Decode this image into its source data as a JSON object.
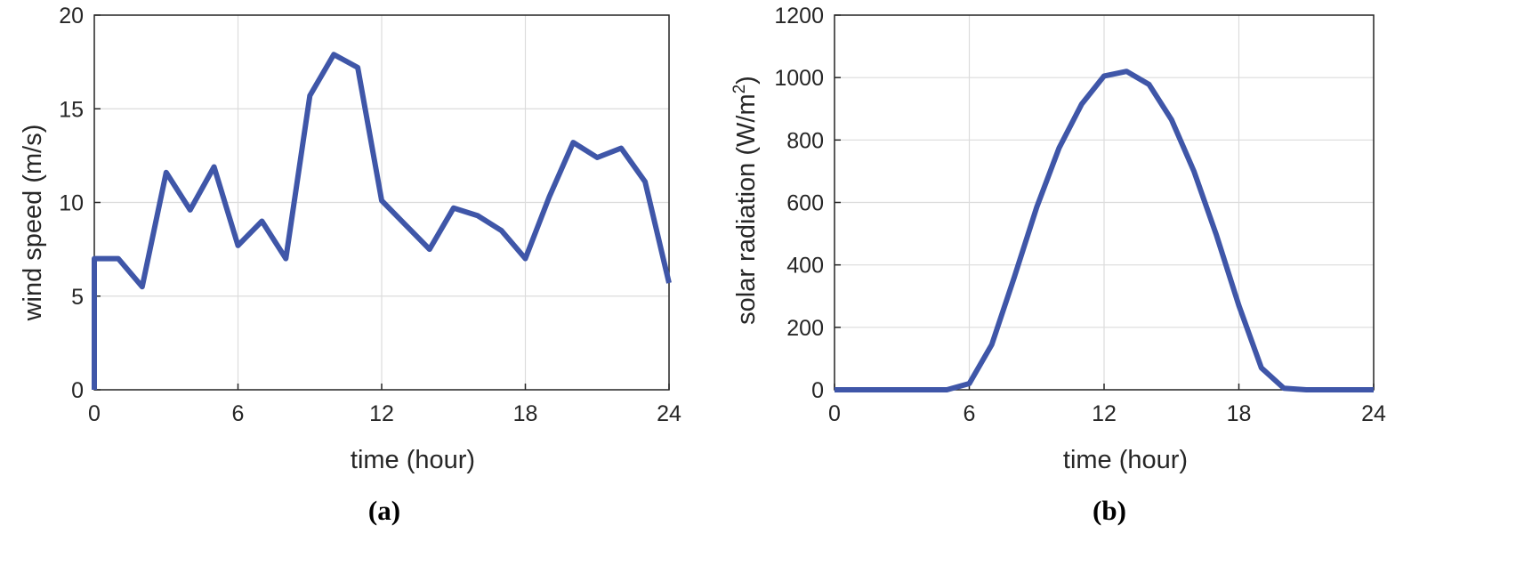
{
  "chart_data": [
    {
      "type": "line",
      "panel_label": "(a)",
      "xlabel": "time (hour)",
      "ylabel": "wind speed (m/s)",
      "xlim": [
        0,
        24
      ],
      "ylim": [
        0,
        20
      ],
      "xticks": [
        0,
        6,
        12,
        18,
        24
      ],
      "yticks": [
        0,
        5,
        10,
        15,
        20
      ],
      "grid": true,
      "color": "#3f56a8",
      "series": [
        {
          "x": [
            0,
            0,
            1,
            2,
            3,
            4,
            5,
            6,
            7,
            8,
            9,
            10,
            11,
            12,
            13,
            14,
            15,
            16,
            17,
            18,
            19,
            20,
            21,
            22,
            23,
            24
          ],
          "values": [
            0,
            7,
            7,
            5.5,
            11.6,
            9.6,
            11.9,
            7.7,
            9.0,
            7.0,
            15.7,
            17.9,
            17.2,
            10.1,
            8.8,
            7.5,
            9.7,
            9.3,
            8.5,
            7.0,
            10.3,
            13.2,
            12.4,
            12.9,
            11.1,
            5.7
          ]
        }
      ]
    },
    {
      "type": "line",
      "panel_label": "(b)",
      "xlabel": "time (hour)",
      "ylabel_main": "solar radiation (W/m",
      "ylabel_sup": "2",
      "ylabel_end": ")",
      "xlim": [
        0,
        24
      ],
      "ylim": [
        0,
        1200
      ],
      "xticks": [
        0,
        6,
        12,
        18,
        24
      ],
      "yticks": [
        0,
        200,
        400,
        600,
        800,
        1000,
        1200
      ],
      "grid": true,
      "color": "#3f56a8",
      "series": [
        {
          "x": [
            0,
            1,
            2,
            3,
            4,
            5,
            6,
            7,
            8,
            9,
            10,
            11,
            12,
            13,
            14,
            15,
            16,
            17,
            18,
            19,
            20,
            21,
            22,
            23,
            24
          ],
          "values": [
            0,
            0,
            0,
            0,
            0,
            0,
            20,
            145,
            360,
            585,
            775,
            915,
            1005,
            1020,
            978,
            865,
            700,
            495,
            270,
            70,
            5,
            0,
            0,
            0,
            0
          ]
        }
      ]
    }
  ]
}
